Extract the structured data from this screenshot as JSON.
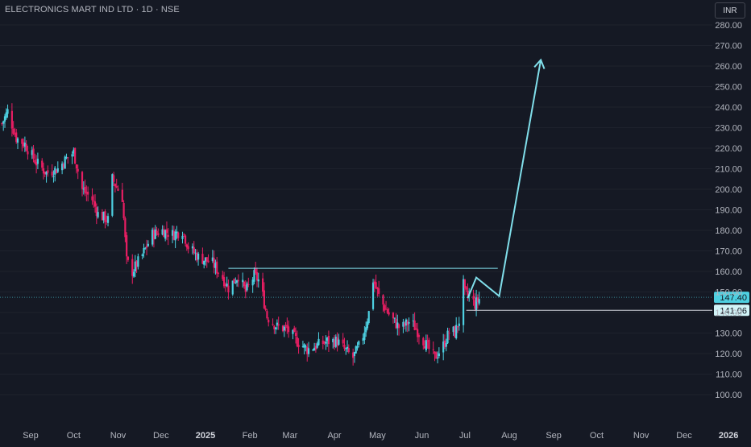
{
  "header": {
    "title": "ELECTRONICS MART IND LTD · 1D · NSE",
    "currency": "INR"
  },
  "colors": {
    "background": "#151924",
    "up": "#4dd0e1",
    "down": "#e91e63",
    "annotation": "#80deea",
    "grid": "#1e222d",
    "text": "#b2b5be"
  },
  "chart_data": {
    "type": "candlestick",
    "x_ticks": [
      "Sep",
      "Oct",
      "Nov",
      "Dec",
      "2025",
      "Feb",
      "Mar",
      "Apr",
      "May",
      "Jun",
      "Jul",
      "Aug",
      "Sep",
      "Oct",
      "Nov",
      "Dec",
      "2026"
    ],
    "y_ticks": [
      100,
      110,
      120,
      130,
      140,
      150,
      160,
      170,
      180,
      190,
      200,
      210,
      220,
      230,
      240,
      250,
      260,
      270,
      280
    ],
    "ylim": [
      96,
      283
    ],
    "price_labels": [
      {
        "label": "147.40",
        "value": 147.4
      },
      {
        "label": "141.06",
        "value": 141.06
      }
    ],
    "series_summary": {
      "sep_2024_start": 234,
      "nov_2024_low": 156,
      "dec_2024_high": 184,
      "jan_2025_resistance": 161.5,
      "mar_2025_low": 115,
      "apr_2025_peak": 158,
      "jun_2025_low": 118,
      "jun_2025_high": 161,
      "last_close": 147.4
    },
    "annotations": {
      "resistance_line": 161.5,
      "support_line": 141.06,
      "projection_path": [
        {
          "date": "Jul 3 2025",
          "price": 147
        },
        {
          "date": "Jul 9 2025",
          "price": 157
        },
        {
          "date": "Jul 25 2025",
          "price": 148
        },
        {
          "date": "Aug 23 2025",
          "price": 263
        }
      ]
    }
  }
}
